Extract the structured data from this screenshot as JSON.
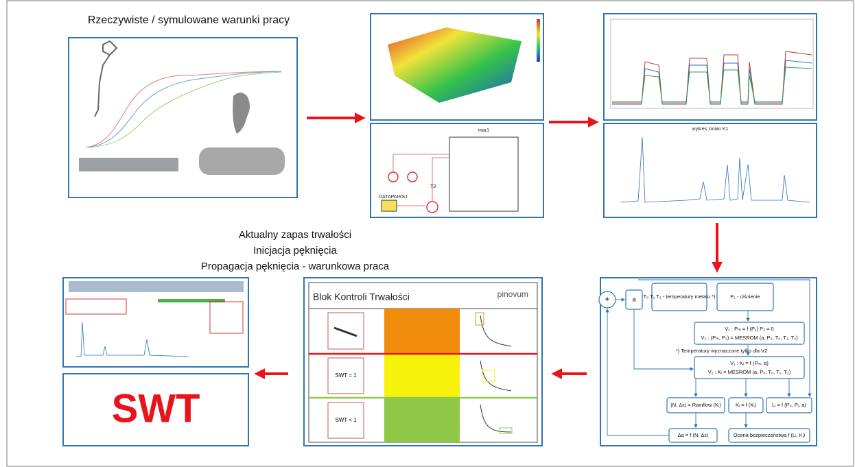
{
  "header": {
    "title": "Rzeczywiste / symulowane warunki pracy"
  },
  "status_lines": [
    "Aktualny zapas trwałości",
    "Inicjacja pęknięcia",
    "Propagacja pęknięcia  - warunkowa praca"
  ],
  "swt_label": "SWT",
  "simulation": {
    "block": "mar1",
    "source": "DATAPAIRS1",
    "signal": "T3"
  },
  "history_chart": {
    "title": "wykres zmian K1"
  },
  "control_block": {
    "title": "Blok Kontroli Trwałości",
    "logo": "pinovum",
    "rows": [
      "SWT = 1",
      "SWT < 1"
    ]
  },
  "flow": {
    "sum": "+",
    "crack": "a",
    "temperatures": "T₀ T₁ T₂ - temperatury metalu *)",
    "pressure": "P₁ - ciśnienie",
    "pressure_model_1": "V₁ : Pₘ = f (P₁)   P₂ = 0",
    "pressure_model_2": "V₂ : (Pₘ, P₂) = MESROM (a, P₀, T₀, T₁, T₂)",
    "note": "*) Temperatury wyznaczone tylko dla V2",
    "stress_model_1": "V₁ : Kᵢ = f (Pₘ, a)",
    "stress_model_2": "V₂ : Kᵢ = MESROM (a, P₀, T₀, T₁, T₂)",
    "rainflow": "(N, Δε) = Rainflow (Kᵢ)",
    "k_function": "Kᵢ = f (Kᵢ)",
    "l_function": "Lᵢ = f (P₀, Pᵢ, a)",
    "crack_growth": "Δa = f (N, Δε)",
    "safety": "Ocena bezpieczeństwa f (Lᵢ, Kᵢ)"
  }
}
